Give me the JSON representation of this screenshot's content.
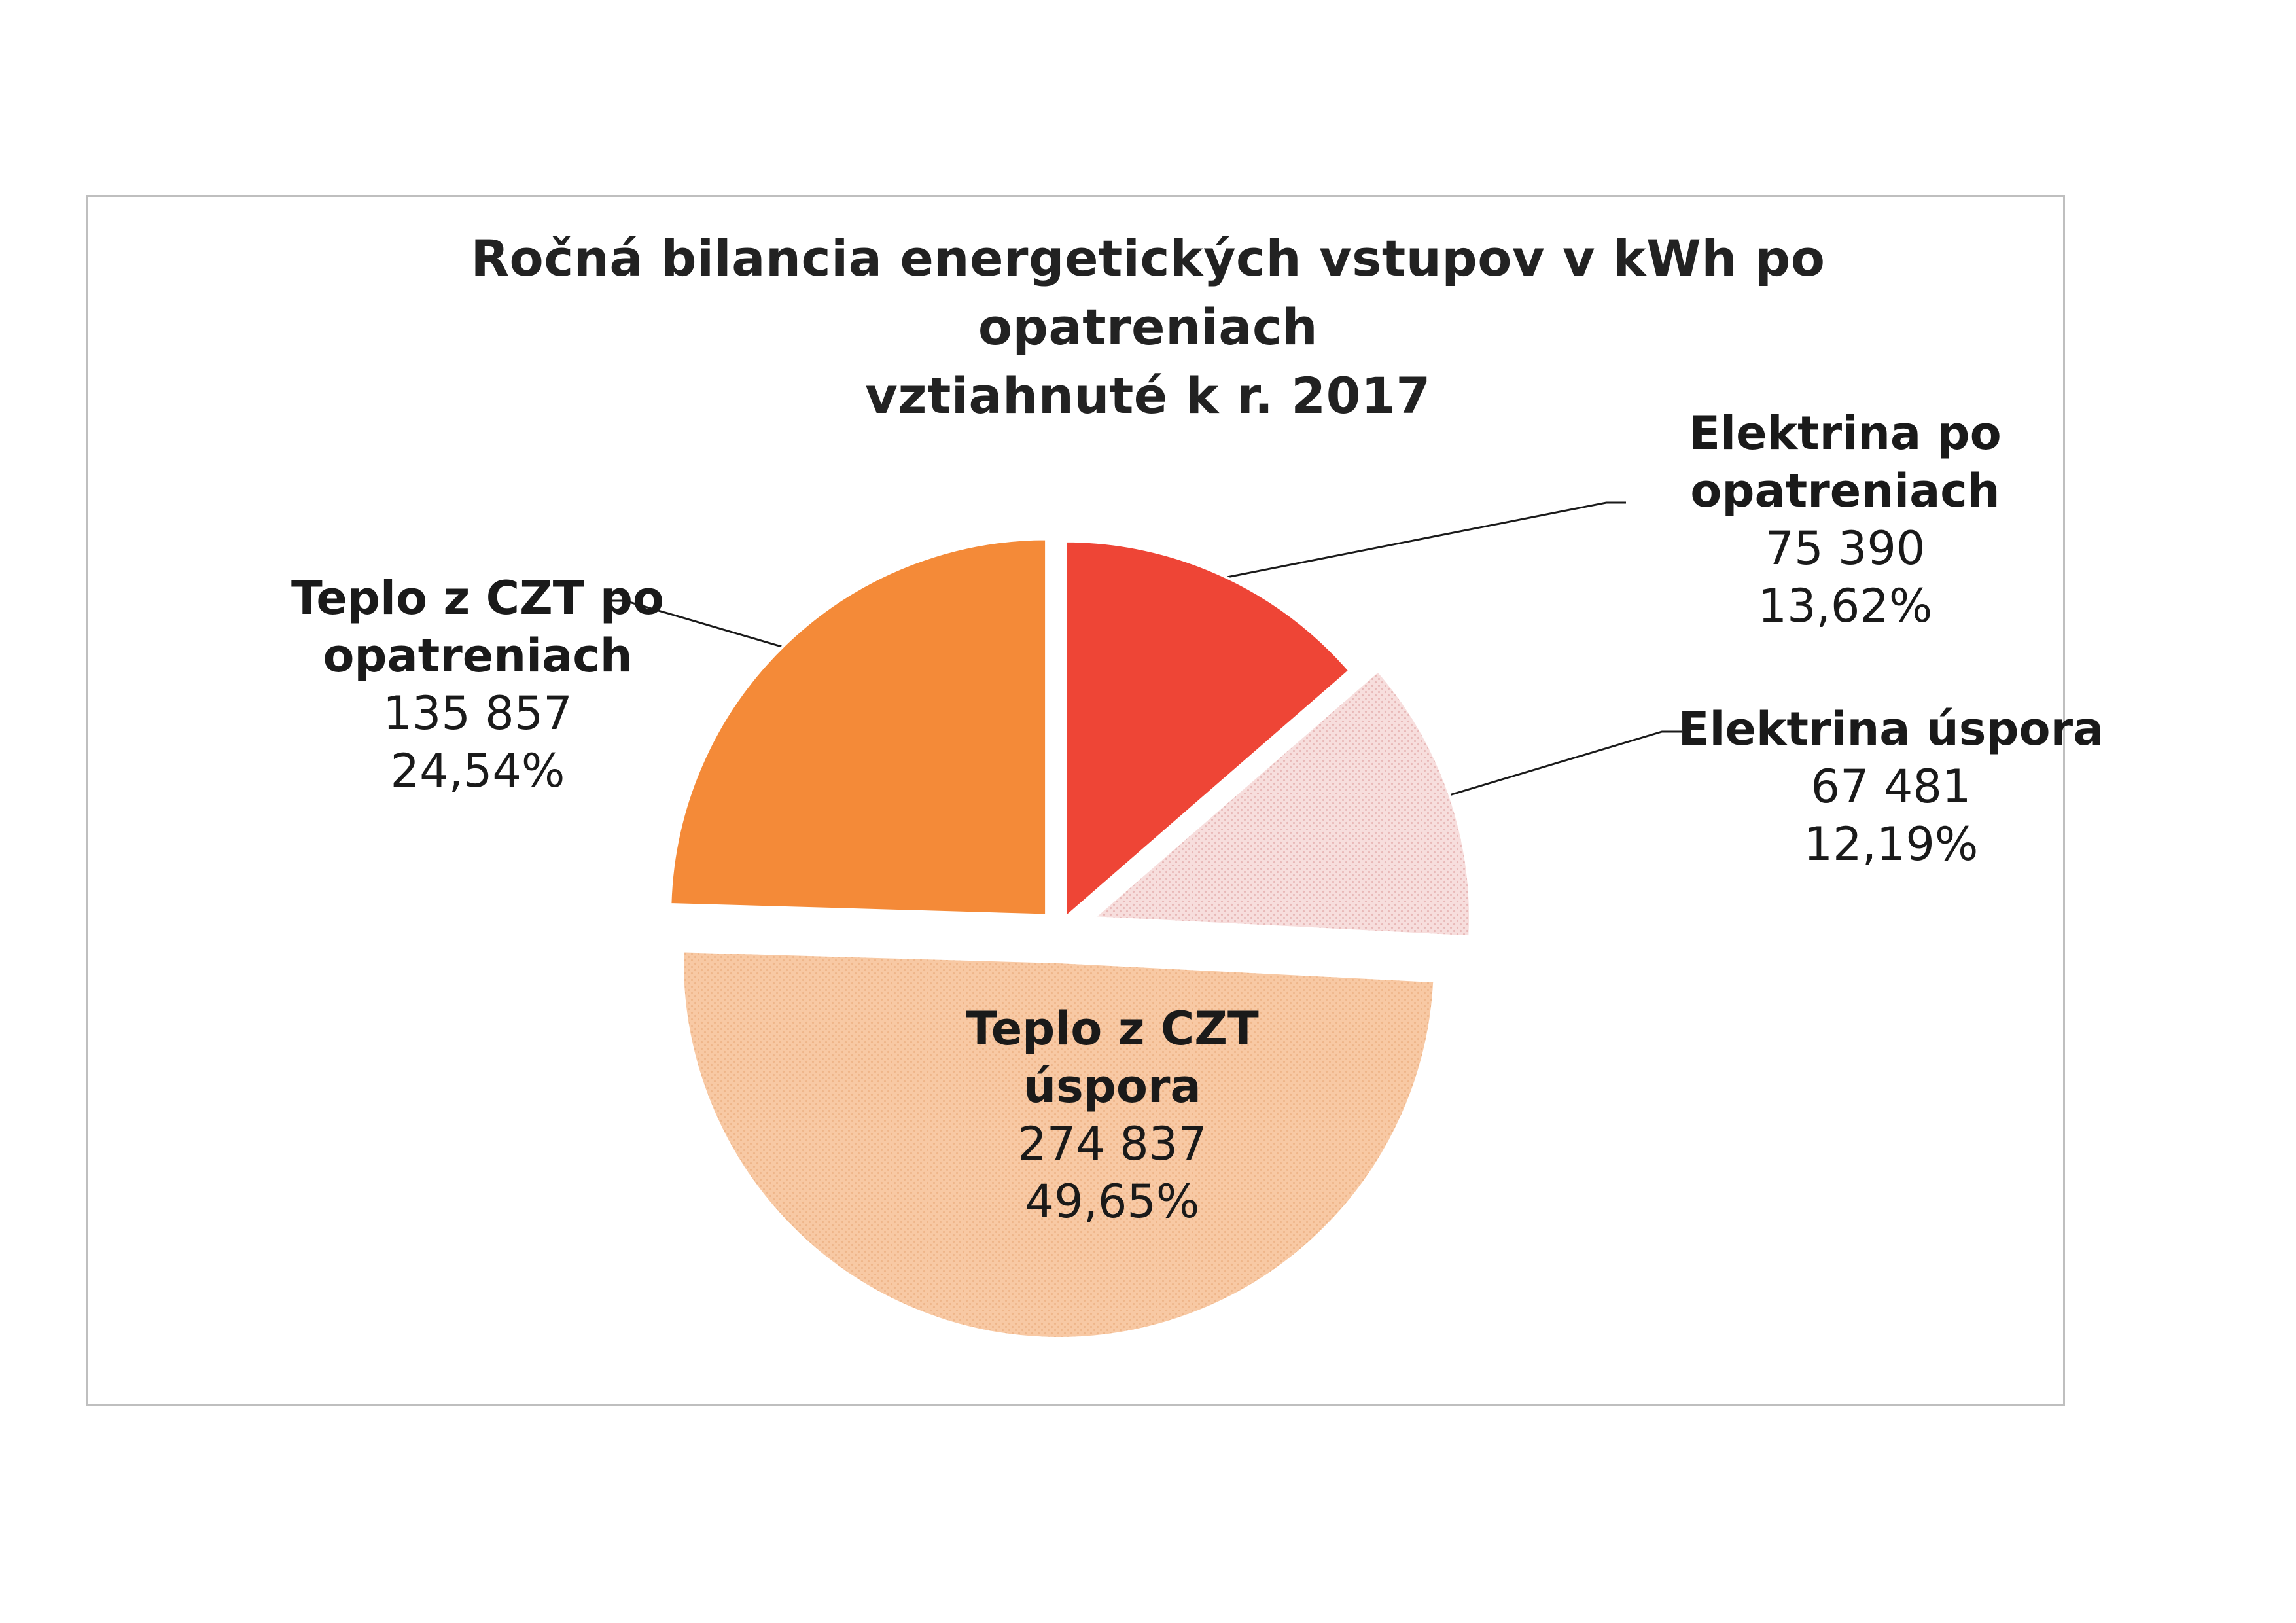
{
  "chart_data": {
    "type": "pie",
    "title_lines": [
      "Ročná bilancia energetických vstupov v kWh po",
      "opatreniach",
      "vztiahnuté k r. 2017"
    ],
    "start_angle_deg": 0,
    "direction": "clockwise",
    "slices": [
      {
        "name_lines": [
          "Elektrina po",
          "opatreniach"
        ],
        "value": 75390,
        "value_label": "75 390",
        "percent_label": "13,62%",
        "color": "#ee4536",
        "pattern": "none",
        "explode": 20
      },
      {
        "name_lines": [
          "Elektrina úspora"
        ],
        "value": 67481,
        "value_label": "67 481",
        "percent_label": "12,19%",
        "color": "#f7dedd",
        "pattern": "dots",
        "explode": 55
      },
      {
        "name_lines": [
          "Teplo z CZT",
          "úspora"
        ],
        "value": 274837,
        "value_label": "274 837",
        "percent_label": "49,65%",
        "color": "#f8c9a4",
        "pattern": "dots",
        "explode": 50
      },
      {
        "name_lines": [
          "Teplo z CZT po",
          "opatreniach"
        ],
        "value": 135857,
        "value_label": "135 857",
        "percent_label": "24,54%",
        "color": "#f48a38",
        "pattern": "none",
        "explode": 30
      }
    ]
  }
}
